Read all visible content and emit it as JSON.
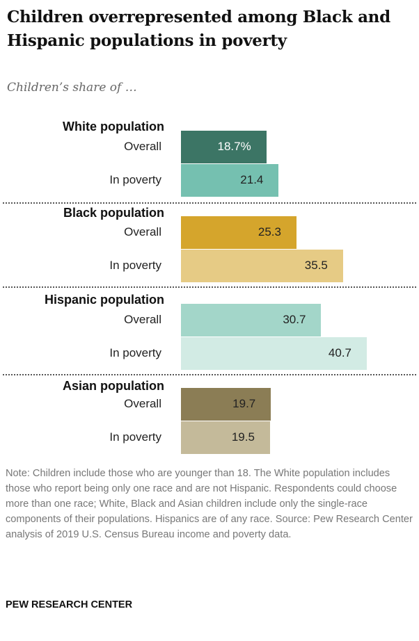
{
  "chart_data": {
    "type": "bar",
    "orientation": "horizontal",
    "title": "Children overrepresented among Black and Hispanic populations in poverty",
    "subtitle": "Children’s share of …",
    "xlim": [
      0,
      42
    ],
    "grid": false,
    "groups": [
      {
        "name": "White population",
        "rows": [
          {
            "label": "Overall",
            "value": 18.7,
            "display": "18.7%",
            "color": "#3c7565",
            "text_color": "#ffffff"
          },
          {
            "label": "In poverty",
            "value": 21.4,
            "display": "21.4",
            "color": "#75c0b0",
            "text_color": "#222222"
          }
        ]
      },
      {
        "name": "Black population",
        "rows": [
          {
            "label": "Overall",
            "value": 25.3,
            "display": "25.3",
            "color": "#d5a52c",
            "text_color": "#222222"
          },
          {
            "label": "In poverty",
            "value": 35.5,
            "display": "35.5",
            "color": "#e6cb85",
            "text_color": "#222222"
          }
        ]
      },
      {
        "name": "Hispanic population",
        "rows": [
          {
            "label": "Overall",
            "value": 30.7,
            "display": "30.7",
            "color": "#a3d6c9",
            "text_color": "#222222"
          },
          {
            "label": "In poverty",
            "value": 40.7,
            "display": "40.7",
            "color": "#d2ebe4",
            "text_color": "#222222"
          }
        ]
      },
      {
        "name": "Asian population",
        "rows": [
          {
            "label": "Overall",
            "value": 19.7,
            "display": "19.7",
            "color": "#8b7d55",
            "text_color": "#222222"
          },
          {
            "label": "In poverty",
            "value": 19.5,
            "display": "19.5",
            "color": "#c4ba9a",
            "text_color": "#222222"
          }
        ]
      }
    ]
  },
  "note": "Note: Children include those who are younger than 18. The White population includes those who report being only one race and are not Hispanic. Respondents could choose more than one race; White, Black and Asian children include only the single-race components of their populations. Hispanics are of any race.",
  "source": "Source: Pew Research Center analysis of 2019 U.S. Census Bureau income and poverty data.",
  "footer": "PEW RESEARCH CENTER"
}
